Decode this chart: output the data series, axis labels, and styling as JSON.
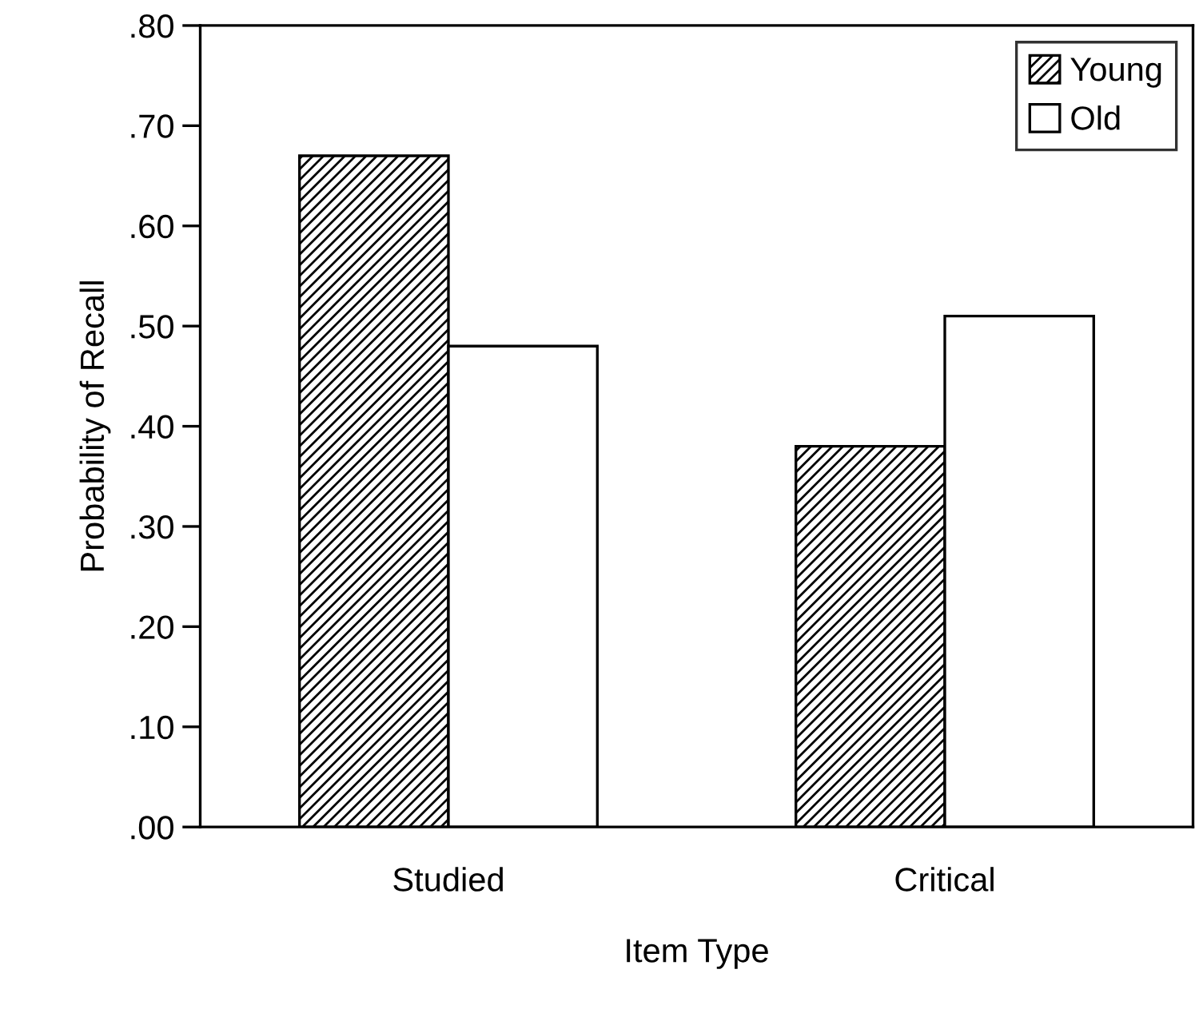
{
  "chart_data": {
    "type": "bar",
    "xlabel": "Item Type",
    "ylabel": "Probability of Recall",
    "categories": [
      "Studied",
      "Critical"
    ],
    "series": [
      {
        "name": "Young",
        "color": "#000000",
        "values": [
          0.67,
          0.38
        ]
      },
      {
        "name": "Old",
        "color": "#ffffff",
        "values": [
          0.48,
          0.51
        ]
      }
    ],
    "ylim": [
      0,
      0.8
    ],
    "yticks": [
      {
        "value": 0,
        "label": ".00"
      },
      {
        "value": 0.1,
        "label": ".10"
      },
      {
        "value": 0.2,
        "label": ".20"
      },
      {
        "value": 0.3,
        "label": ".30"
      },
      {
        "value": 0.4,
        "label": ".40"
      },
      {
        "value": 0.5,
        "label": ".50"
      },
      {
        "value": 0.6,
        "label": ".60"
      },
      {
        "value": 0.7,
        "label": ".70"
      },
      {
        "value": 0.8,
        "label": ".80"
      }
    ],
    "grid": false,
    "legend": "top right"
  }
}
